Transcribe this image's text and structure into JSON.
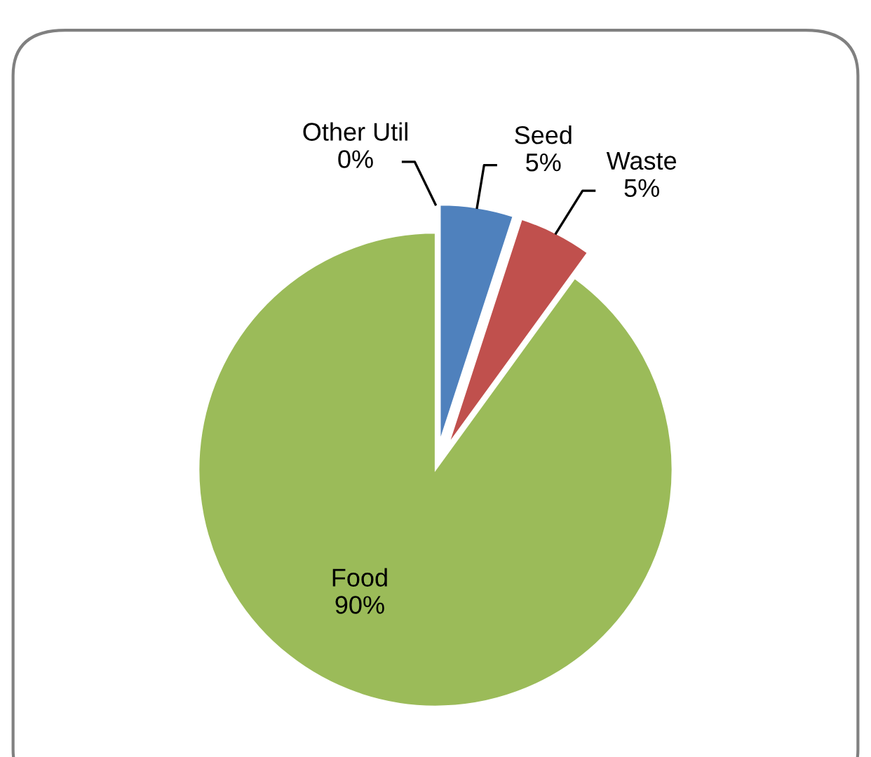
{
  "chart_data": {
    "type": "pie",
    "categories": [
      "Other Util",
      "Seed",
      "Waste",
      "Food"
    ],
    "values": [
      0,
      5,
      5,
      90
    ],
    "colors": [
      "#8064a2",
      "#4f81bd",
      "#c0504d",
      "#9bbb59"
    ],
    "value_labels": [
      "0%",
      "5%",
      "5%",
      "90%"
    ],
    "legend": false
  }
}
